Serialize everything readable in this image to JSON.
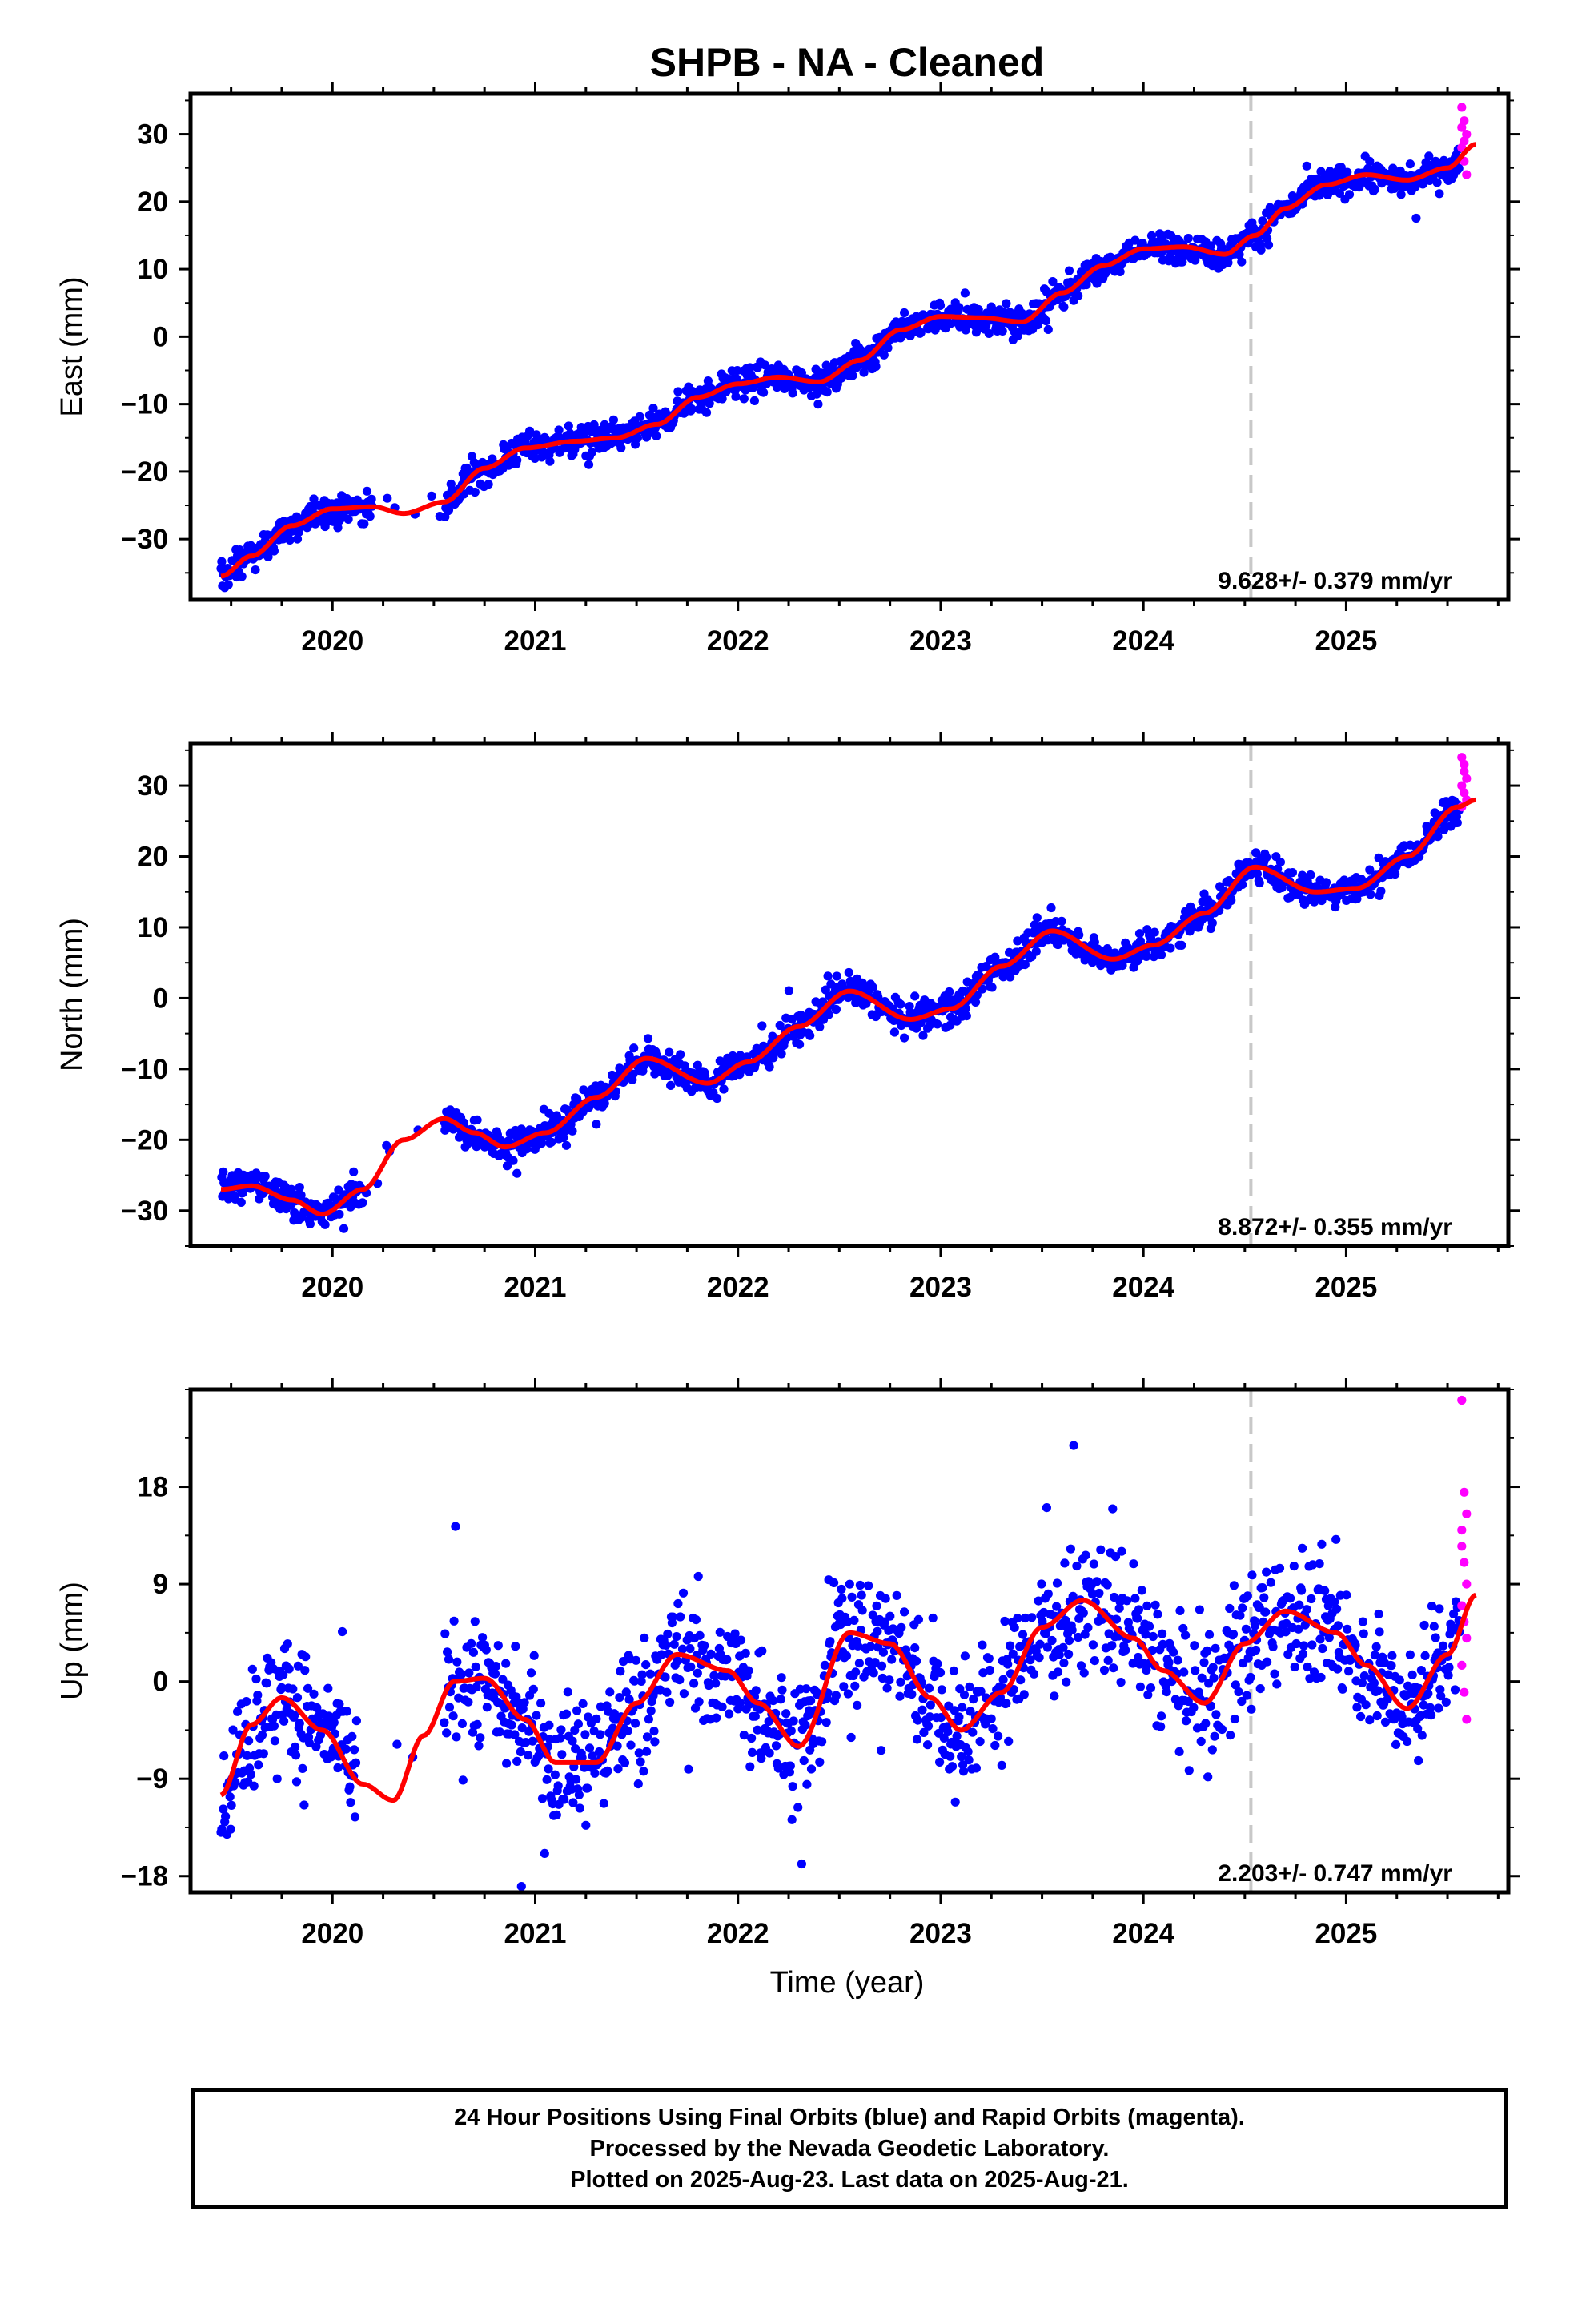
{
  "title": "SHPB  - NA - Cleaned",
  "xlabel": "Time (year)",
  "colors": {
    "final_orbits": "#0000ff",
    "rapid_orbits": "#ff00ff",
    "model": "#ff0000",
    "event_line": "#c8c8c8"
  },
  "footer": {
    "line1": "24 Hour Positions Using Final Orbits (blue) and Rapid Orbits (magenta).",
    "line2": "Processed by the Nevada Geodetic Laboratory.",
    "line3": "Plotted on 2025-Aug-23. Last data on 2025-Aug-21."
  },
  "chart_data": [
    {
      "type": "scatter",
      "ylabel": "East (mm)",
      "rate_label": "9.628+/- 0.379 mm/yr",
      "xlim": [
        2019.3,
        2025.8
      ],
      "ylim": [
        -39,
        36
      ],
      "xticks": [
        2020,
        2021,
        2022,
        2023,
        2024,
        2025
      ],
      "yticks": [
        -30,
        -20,
        -10,
        0,
        10,
        20,
        30
      ],
      "event_line_x": 2024.53,
      "gaps": [
        [
          2020.2,
          2020.55
        ]
      ],
      "final_orbits_span": [
        2019.45,
        2025.56
      ],
      "rapid_orbits_span": [
        2025.57,
        2025.64
      ],
      "model": {
        "x": [
          2019.45,
          2019.6,
          2019.8,
          2020.0,
          2020.2,
          2020.35,
          2020.55,
          2020.75,
          2020.95,
          2021.2,
          2021.4,
          2021.6,
          2021.8,
          2022.0,
          2022.2,
          2022.4,
          2022.6,
          2022.8,
          2023.0,
          2023.2,
          2023.4,
          2023.6,
          2023.8,
          2024.0,
          2024.2,
          2024.4,
          2024.55,
          2024.7,
          2024.9,
          2025.1,
          2025.3,
          2025.5,
          2025.64
        ],
        "y": [
          -35.5,
          -32.5,
          -28,
          -25.5,
          -25.2,
          -26.2,
          -24.5,
          -19.5,
          -16.5,
          -15.5,
          -15,
          -13,
          -9,
          -7,
          -6,
          -6.7,
          -3.5,
          1,
          3,
          2.8,
          2.2,
          6.5,
          10.5,
          13,
          13.3,
          12.2,
          15,
          19,
          22.5,
          24,
          23.2,
          25,
          28.5
        ]
      },
      "rapid_points_y": [
        34,
        32,
        30,
        28,
        26,
        24,
        31,
        29
      ]
    },
    {
      "type": "scatter",
      "ylabel": "North (mm)",
      "rate_label": "8.872+/- 0.355 mm/yr",
      "xlim": [
        2019.3,
        2025.8
      ],
      "ylim": [
        -35,
        36
      ],
      "xticks": [
        2020,
        2021,
        2022,
        2023,
        2024,
        2025
      ],
      "yticks": [
        -30,
        -20,
        -10,
        0,
        10,
        20,
        30
      ],
      "event_line_x": 2024.53,
      "gaps": [
        [
          2020.15,
          2020.55
        ]
      ],
      "final_orbits_span": [
        2019.45,
        2025.56
      ],
      "rapid_orbits_span": [
        2025.57,
        2025.64
      ],
      "model": {
        "x": [
          2019.45,
          2019.6,
          2019.8,
          2019.95,
          2020.15,
          2020.35,
          2020.55,
          2020.7,
          2020.85,
          2021.05,
          2021.3,
          2021.55,
          2021.85,
          2022.05,
          2022.3,
          2022.55,
          2022.85,
          2023.05,
          2023.3,
          2023.55,
          2023.85,
          2024.05,
          2024.3,
          2024.55,
          2024.85,
          2025.05,
          2025.3,
          2025.55,
          2025.64
        ],
        "y": [
          -27,
          -26.5,
          -28.5,
          -30.5,
          -27,
          -20,
          -17,
          -19,
          -21,
          -19,
          -14,
          -8.5,
          -12,
          -9,
          -4,
          1,
          -3,
          -1.5,
          4.5,
          9.5,
          5.5,
          7.5,
          12,
          18.5,
          15,
          15.5,
          20,
          27,
          28
        ]
      },
      "rapid_points_y": [
        34,
        32,
        31,
        30,
        29,
        28,
        27,
        33
      ]
    },
    {
      "type": "scatter",
      "ylabel": "Up (mm)",
      "rate_label": "2.203+/- 0.747 mm/yr",
      "xlim": [
        2019.3,
        2025.8
      ],
      "ylim": [
        -19.5,
        27
      ],
      "xticks": [
        2020,
        2021,
        2022,
        2023,
        2024,
        2025
      ],
      "yticks": [
        -18,
        -9,
        0,
        9,
        18
      ],
      "event_line_x": 2024.53,
      "gaps": [
        [
          2020.12,
          2020.55
        ]
      ],
      "final_orbits_span": [
        2019.45,
        2025.56
      ],
      "rapid_orbits_span": [
        2025.57,
        2025.64
      ],
      "model": {
        "x": [
          2019.45,
          2019.6,
          2019.75,
          2019.95,
          2020.15,
          2020.3,
          2020.45,
          2020.6,
          2020.75,
          2020.95,
          2021.1,
          2021.3,
          2021.5,
          2021.7,
          2021.95,
          2022.1,
          2022.3,
          2022.55,
          2022.75,
          2022.95,
          2023.1,
          2023.3,
          2023.5,
          2023.7,
          2023.95,
          2024.1,
          2024.3,
          2024.5,
          2024.7,
          2024.95,
          2025.1,
          2025.3,
          2025.5,
          2025.64
        ],
        "y": [
          -10.5,
          -4,
          -1.5,
          -4.5,
          -9.5,
          -11,
          -5,
          0,
          0.3,
          -3.5,
          -7.5,
          -7.5,
          -2,
          2.5,
          1,
          -2,
          -6,
          4.5,
          3.5,
          -1.5,
          -4.5,
          -1,
          5,
          7.5,
          4,
          1,
          -2,
          3.5,
          6.5,
          4.5,
          1.5,
          -2.5,
          2.5,
          8
        ]
      },
      "rapid_points_y": [
        26,
        17.5,
        15.5,
        12.5,
        11,
        9,
        7,
        5.5,
        4,
        1.5,
        -1,
        -3.5,
        14
      ]
    }
  ]
}
